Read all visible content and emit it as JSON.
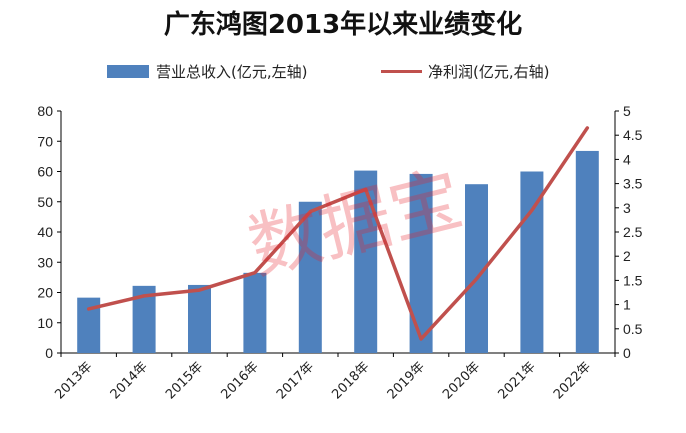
{
  "chart_data": {
    "type": "bar+line",
    "title": "广东鸿图2013年以来业绩变化",
    "categories": [
      "2013年",
      "2014年",
      "2015年",
      "2016年",
      "2017年",
      "2018年",
      "2019年",
      "2020年",
      "2021年",
      "2022年"
    ],
    "series": [
      {
        "name": "营业总收入(亿元,左轴)",
        "type": "bar",
        "axis": "left",
        "color": "#4f81bd",
        "values": [
          18.3,
          22.2,
          22.5,
          26.5,
          50.0,
          60.3,
          59.2,
          55.8,
          60.0,
          66.8
        ]
      },
      {
        "name": "净利润(亿元,右轴)",
        "type": "line",
        "axis": "right",
        "color": "#c0504d",
        "values": [
          0.91,
          1.18,
          1.3,
          1.66,
          2.92,
          3.38,
          0.29,
          1.53,
          2.95,
          4.65
        ]
      }
    ],
    "y_left": {
      "min": 0,
      "max": 80,
      "step": 10,
      "ticks": [
        "0",
        "10",
        "20",
        "30",
        "40",
        "50",
        "60",
        "70",
        "80"
      ]
    },
    "y_right": {
      "min": 0,
      "max": 5,
      "step": 0.5,
      "ticks": [
        "0",
        "0.5",
        "1",
        "1.5",
        "2",
        "2.5",
        "3",
        "3.5",
        "4",
        "4.5",
        "5"
      ]
    },
    "legend_position": "top",
    "grid": false
  },
  "watermark": "数据宝"
}
